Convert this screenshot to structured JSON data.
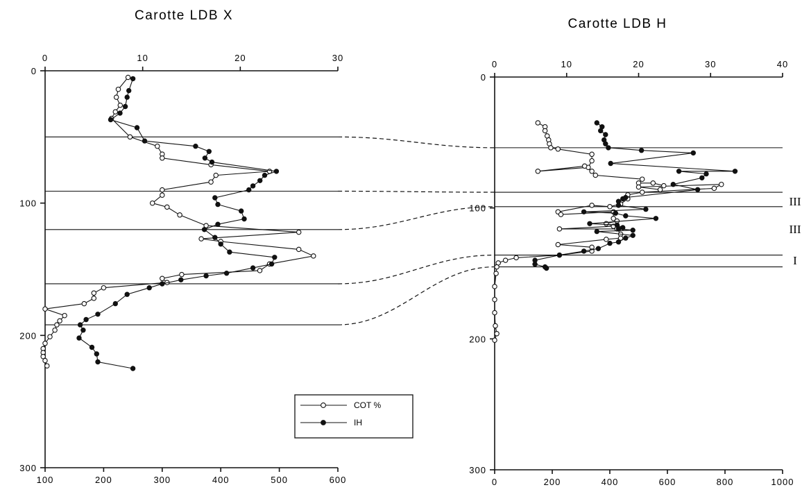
{
  "chart_data": [
    {
      "type": "line",
      "title": "Carotte LDB X",
      "ylim": [
        0,
        300
      ],
      "y_axis_reversed": true,
      "y_ticks": [
        "0",
        "100",
        "200",
        "300"
      ],
      "x_top_range": [
        0,
        30
      ],
      "x_top_ticks": [
        "0",
        "10",
        "20",
        "30"
      ],
      "x_bottom_range": [
        100,
        600
      ],
      "x_bottom_ticks": [
        "100",
        "200",
        "300",
        "400",
        "500",
        "600"
      ],
      "boundaries": [
        50,
        91,
        120,
        161,
        192
      ],
      "series": [
        {
          "name": "COT %",
          "axis": "top",
          "marker": "open-circle",
          "points": [
            [
              8.5,
              5
            ],
            [
              7.5,
              14
            ],
            [
              7.3,
              20
            ],
            [
              7.7,
              26
            ],
            [
              7.2,
              31
            ],
            [
              6.8,
              36
            ],
            [
              8.7,
              50
            ],
            [
              11.5,
              57
            ],
            [
              12,
              63
            ],
            [
              12,
              66
            ],
            [
              17,
              71
            ],
            [
              23,
              76
            ],
            [
              17.5,
              79
            ],
            [
              17,
              84
            ],
            [
              12,
              90
            ],
            [
              12,
              94
            ],
            [
              11,
              100
            ],
            [
              12.5,
              103
            ],
            [
              13.8,
              109
            ],
            [
              16.5,
              117
            ],
            [
              26,
              122
            ],
            [
              16,
              127
            ],
            [
              18,
              129
            ],
            [
              26,
              135
            ],
            [
              27.5,
              140
            ],
            [
              23,
              146
            ],
            [
              22,
              151
            ],
            [
              14,
              154
            ],
            [
              12,
              157
            ],
            [
              12.5,
              160
            ],
            [
              6,
              164
            ],
            [
              5,
              168
            ],
            [
              5,
              172
            ],
            [
              4,
              176
            ],
            [
              0,
              180
            ],
            [
              2,
              185
            ],
            [
              1.5,
              189
            ],
            [
              1.2,
              192
            ],
            [
              1,
              196
            ],
            [
              0.5,
              201
            ],
            [
              0,
              206
            ],
            [
              -0.2,
              210
            ],
            [
              -0.2,
              213
            ],
            [
              -0.2,
              216
            ],
            [
              0,
              219
            ],
            [
              0.2,
              223
            ]
          ]
        },
        {
          "name": "IH",
          "axis": "bottom",
          "marker": "filled-circle",
          "points": [
            [
              250,
              6
            ],
            [
              243,
              15
            ],
            [
              240,
              20
            ],
            [
              237,
              27
            ],
            [
              228,
              32
            ],
            [
              212,
              37
            ],
            [
              257,
              43
            ],
            [
              270,
              53
            ],
            [
              357,
              57
            ],
            [
              380,
              61
            ],
            [
              373,
              66
            ],
            [
              385,
              69
            ],
            [
              495,
              76
            ],
            [
              475,
              79
            ],
            [
              467,
              83
            ],
            [
              455,
              87
            ],
            [
              448,
              90
            ],
            [
              390,
              96
            ],
            [
              395,
              101
            ],
            [
              435,
              106
            ],
            [
              440,
              112
            ],
            [
              395,
              116
            ],
            [
              372,
              120
            ],
            [
              390,
              126
            ],
            [
              400,
              131
            ],
            [
              415,
              137
            ],
            [
              492,
              141
            ],
            [
              487,
              146
            ],
            [
              455,
              149
            ],
            [
              410,
              153
            ],
            [
              375,
              155
            ],
            [
              332,
              158
            ],
            [
              300,
              161
            ],
            [
              278,
              164
            ],
            [
              240,
              169
            ],
            [
              220,
              176
            ],
            [
              190,
              184
            ],
            [
              170,
              188
            ],
            [
              160,
              192
            ],
            [
              165,
              196
            ],
            [
              158,
              202
            ],
            [
              180,
              209
            ],
            [
              188,
              214
            ],
            [
              190,
              220
            ],
            [
              250,
              225
            ]
          ]
        }
      ]
    },
    {
      "type": "line",
      "title": "Carotte LDB H",
      "ylim": [
        0,
        300
      ],
      "y_axis_reversed": true,
      "y_ticks": [
        "0",
        "100",
        "200",
        "300"
      ],
      "x_top_range": [
        0,
        40
      ],
      "x_top_ticks": [
        "0",
        "10",
        "20",
        "30",
        "40"
      ],
      "x_bottom_range": [
        0,
        1000
      ],
      "x_bottom_ticks": [
        "0",
        "200",
        "400",
        "600",
        "800",
        "1000"
      ],
      "boundaries": [
        54,
        88,
        99,
        136,
        145
      ],
      "zone_labels": [
        {
          "text": "III",
          "depth": 95
        },
        {
          "text": "III",
          "depth": 116
        },
        {
          "text": "I",
          "depth": 140
        }
      ],
      "series": [
        {
          "name": "COT %",
          "axis": "top",
          "marker": "open-circle",
          "points": [
            [
              6,
              35
            ],
            [
              7,
              38
            ],
            [
              7,
              41
            ],
            [
              7.3,
              45
            ],
            [
              7.5,
              48
            ],
            [
              7.6,
              51
            ],
            [
              7.8,
              54
            ],
            [
              8.8,
              55
            ],
            [
              13.5,
              59
            ],
            [
              13.5,
              64
            ],
            [
              13,
              69
            ],
            [
              6,
              72
            ],
            [
              12.5,
              68
            ],
            [
              13.5,
              72
            ],
            [
              14,
              75
            ],
            [
              20.5,
              78
            ],
            [
              20,
              81
            ],
            [
              22,
              81
            ],
            [
              23.5,
              83
            ],
            [
              23,
              86
            ],
            [
              20,
              84
            ],
            [
              31.5,
              82
            ],
            [
              30.5,
              85
            ],
            [
              20.5,
              88
            ],
            [
              18.5,
              90
            ],
            [
              18.5,
              93
            ],
            [
              17.5,
              97
            ],
            [
              16,
              99
            ],
            [
              13.5,
              98
            ],
            [
              8.8,
              103
            ],
            [
              9.2,
              105
            ],
            [
              16.5,
              103
            ],
            [
              16.5,
              108
            ],
            [
              17,
              110
            ],
            [
              15.5,
              112
            ],
            [
              16.5,
              114
            ],
            [
              9,
              116
            ],
            [
              17,
              116
            ],
            [
              17.5,
              120
            ],
            [
              17.5,
              123
            ],
            [
              15.5,
              124
            ],
            [
              8.8,
              128
            ],
            [
              13.5,
              130
            ],
            [
              13.5,
              133
            ],
            [
              9,
              136
            ],
            [
              3,
              138
            ],
            [
              1.5,
              140
            ],
            [
              0.5,
              142
            ],
            [
              0.3,
              145
            ],
            [
              0.2,
              150
            ],
            [
              0,
              160
            ],
            [
              0,
              170
            ],
            [
              0,
              180
            ],
            [
              0.1,
              190
            ],
            [
              0.3,
              196
            ],
            [
              0,
              201
            ]
          ]
        },
        {
          "name": "IH",
          "axis": "bottom",
          "marker": "filled-circle",
          "points": [
            [
              355,
              35
            ],
            [
              373,
              38
            ],
            [
              368,
              41
            ],
            [
              385,
              44
            ],
            [
              380,
              48
            ],
            [
              385,
              51
            ],
            [
              395,
              54
            ],
            [
              510,
              56
            ],
            [
              690,
              58
            ],
            [
              403,
              66
            ],
            [
              835,
              72
            ],
            [
              640,
              72
            ],
            [
              735,
              74
            ],
            [
              720,
              77
            ],
            [
              620,
              82
            ],
            [
              705,
              86
            ],
            [
              455,
              92
            ],
            [
              445,
              93
            ],
            [
              430,
              95
            ],
            [
              430,
              98
            ],
            [
              525,
              101
            ],
            [
              310,
              103
            ],
            [
              420,
              104
            ],
            [
              455,
              106
            ],
            [
              560,
              108
            ],
            [
              330,
              112
            ],
            [
              425,
              113
            ],
            [
              445,
              115
            ],
            [
              430,
              116
            ],
            [
              480,
              117
            ],
            [
              355,
              118
            ],
            [
              480,
              121
            ],
            [
              455,
              123
            ],
            [
              430,
              126
            ],
            [
              400,
              127
            ],
            [
              360,
              131
            ],
            [
              310,
              133
            ],
            [
              225,
              136
            ],
            [
              140,
              140
            ],
            [
              140,
              143
            ],
            [
              175,
              145
            ],
            [
              180,
              146
            ]
          ]
        }
      ]
    }
  ],
  "legend": {
    "items": [
      {
        "label": "COT %",
        "marker": "open-circle"
      },
      {
        "label": "IH",
        "marker": "filled-circle"
      }
    ]
  }
}
